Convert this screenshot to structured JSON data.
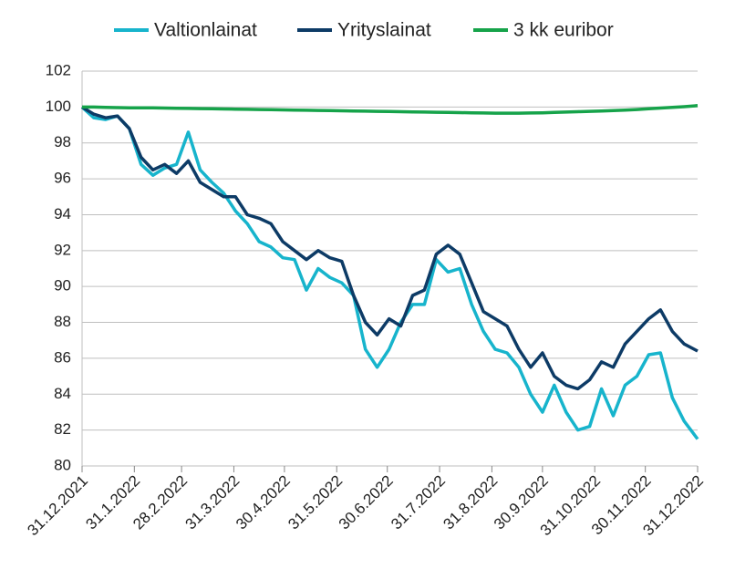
{
  "chart_data": {
    "type": "line",
    "x": [
      "2021-12-31",
      "2022-01-07",
      "2022-01-14",
      "2022-01-21",
      "2022-01-28",
      "2022-02-04",
      "2022-02-11",
      "2022-02-18",
      "2022-02-25",
      "2022-03-04",
      "2022-03-11",
      "2022-03-18",
      "2022-03-25",
      "2022-04-01",
      "2022-04-08",
      "2022-04-15",
      "2022-04-22",
      "2022-04-29",
      "2022-05-06",
      "2022-05-13",
      "2022-05-20",
      "2022-05-27",
      "2022-06-03",
      "2022-06-10",
      "2022-06-17",
      "2022-06-24",
      "2022-07-01",
      "2022-07-08",
      "2022-07-15",
      "2022-07-22",
      "2022-07-29",
      "2022-08-05",
      "2022-08-12",
      "2022-08-19",
      "2022-08-26",
      "2022-09-02",
      "2022-09-09",
      "2022-09-16",
      "2022-09-23",
      "2022-09-30",
      "2022-10-07",
      "2022-10-14",
      "2022-10-21",
      "2022-10-28",
      "2022-11-04",
      "2022-11-11",
      "2022-11-18",
      "2022-11-25",
      "2022-12-02",
      "2022-12-09",
      "2022-12-16",
      "2022-12-23",
      "2022-12-31"
    ],
    "series": [
      {
        "name": "Valtionlainat",
        "color": "#17b4cc",
        "values": [
          100,
          99.4,
          99.3,
          99.5,
          98.8,
          96.8,
          96.2,
          96.6,
          96.8,
          98.6,
          96.5,
          95.8,
          95.2,
          94.2,
          93.5,
          92.5,
          92.2,
          91.6,
          91.5,
          89.8,
          91.0,
          90.5,
          90.2,
          89.5,
          86.5,
          85.5,
          86.5,
          88.0,
          89.0,
          89.0,
          91.5,
          90.8,
          91.0,
          89.0,
          87.5,
          86.5,
          86.3,
          85.5,
          84.0,
          83.0,
          84.5,
          83.0,
          82.0,
          82.2,
          84.3,
          82.8,
          84.5,
          85.0,
          86.2,
          86.3,
          83.8,
          82.5,
          81.5
        ]
      },
      {
        "name": "Yrityslainat",
        "color": "#0d3b66",
        "values": [
          100,
          99.6,
          99.4,
          99.5,
          98.8,
          97.2,
          96.5,
          96.8,
          96.3,
          97.0,
          95.8,
          95.4,
          95.0,
          95.0,
          94.0,
          93.8,
          93.5,
          92.5,
          92.0,
          91.5,
          92.0,
          91.6,
          91.4,
          89.5,
          88.0,
          87.3,
          88.2,
          87.8,
          89.5,
          89.8,
          91.8,
          92.3,
          91.8,
          90.2,
          88.6,
          88.2,
          87.8,
          86.5,
          85.5,
          86.3,
          85.0,
          84.5,
          84.3,
          84.8,
          85.8,
          85.5,
          86.8,
          87.5,
          88.2,
          88.7,
          87.5,
          86.8,
          86.4
        ]
      },
      {
        "name": "3 kk euribor",
        "color": "#16a34a",
        "values": [
          100,
          100,
          99.98,
          99.97,
          99.96,
          99.95,
          99.95,
          99.94,
          99.93,
          99.92,
          99.91,
          99.9,
          99.89,
          99.88,
          99.87,
          99.86,
          99.85,
          99.84,
          99.83,
          99.82,
          99.81,
          99.8,
          99.79,
          99.78,
          99.77,
          99.76,
          99.75,
          99.74,
          99.73,
          99.72,
          99.71,
          99.7,
          99.69,
          99.68,
          99.67,
          99.66,
          99.66,
          99.66,
          99.67,
          99.68,
          99.7,
          99.72,
          99.74,
          99.76,
          99.78,
          99.8,
          99.83,
          99.86,
          99.9,
          99.94,
          99.98,
          100.02,
          100.08
        ]
      }
    ],
    "xlim": [
      "2021-12-31",
      "2022-12-31"
    ],
    "xticks": [
      {
        "value": "2021-12-31",
        "label": "31.12.2021"
      },
      {
        "value": "2022-01-31",
        "label": "31.1.2022"
      },
      {
        "value": "2022-02-28",
        "label": "28.2.2022"
      },
      {
        "value": "2022-03-31",
        "label": "31.3.2022"
      },
      {
        "value": "2022-04-30",
        "label": "30.4.2022"
      },
      {
        "value": "2022-05-31",
        "label": "31.5.2022"
      },
      {
        "value": "2022-06-30",
        "label": "30.6.2022"
      },
      {
        "value": "2022-07-31",
        "label": "31.7.2022"
      },
      {
        "value": "2022-08-31",
        "label": "31.8.2022"
      },
      {
        "value": "2022-09-30",
        "label": "30.9.2022"
      },
      {
        "value": "2022-10-31",
        "label": "31.10.2022"
      },
      {
        "value": "2022-11-30",
        "label": "30.11.2022"
      },
      {
        "value": "2022-12-31",
        "label": "31.12.2022"
      }
    ],
    "ylim": [
      80,
      102
    ],
    "yticks": [
      80,
      82,
      84,
      86,
      88,
      90,
      92,
      94,
      96,
      98,
      100,
      102
    ],
    "grid": true,
    "legend": "top"
  }
}
